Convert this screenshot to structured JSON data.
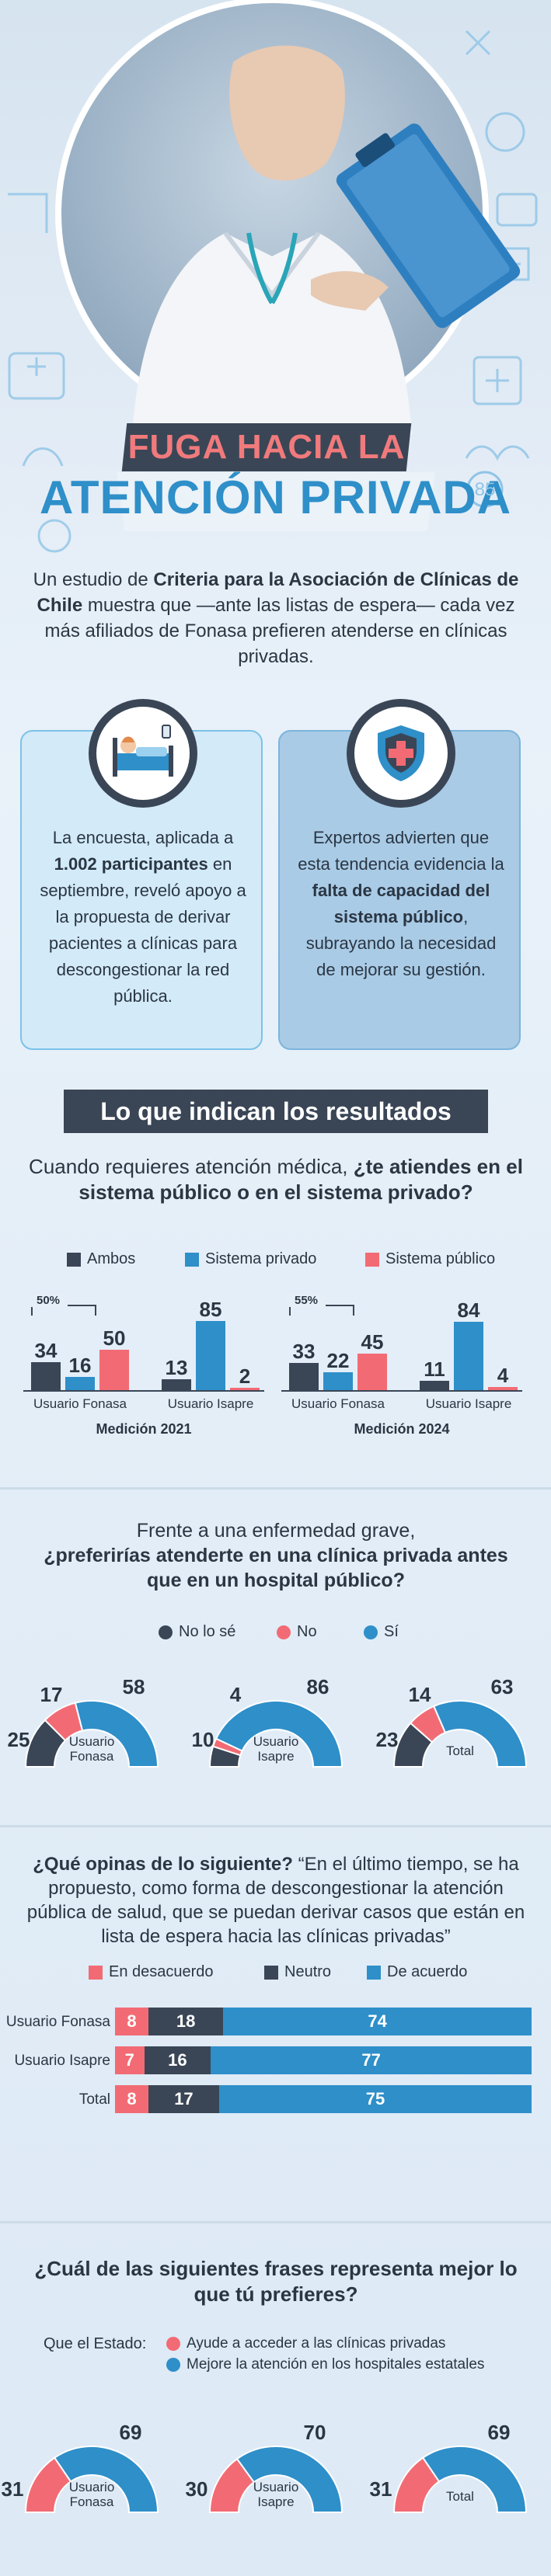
{
  "hero": {
    "title_line1": "FUGA HACIA LA",
    "title_line2": "ATENCIÓN PRIVADA",
    "badge": "85",
    "intro_1": "Un estudio de ",
    "intro_bold": "Criteria para la Asociación de Clínicas de Chile",
    "intro_2": " muestra que —ante las listas de espera— cada vez más afiliados de Fonasa prefieren atenderse en clínicas privadas."
  },
  "card_left": {
    "icon": "patient-bed-icon",
    "t1": "La encuesta, aplicada a ",
    "bold": "1.002 participantes",
    "t2": " en septiembre, reveló apoyo a la propuesta de derivar pacientes a clínicas para descongestionar la red pública."
  },
  "card_right": {
    "icon": "shield-cross-icon",
    "t1": "Expertos advierten que esta tendencia evidencia la ",
    "bold": "falta de capacidad del sistema público",
    "t2": ", subrayando la necesidad de mejorar su gestión."
  },
  "section_title": "Lo que indican los resultados",
  "q1": {
    "text": "Cuando requieres atención médica, ",
    "bold": "¿te atiendes en el sistema público o en el sistema privado?"
  },
  "colors": {
    "ambos": "#3a4656",
    "privado": "#2e8fc9",
    "publico": "#f26b74",
    "neutral": "#3a4656"
  },
  "chart_data": [
    {
      "type": "bar",
      "legend": [
        "Ambos",
        "Sistema privado",
        "Sistema público"
      ],
      "groups": [
        {
          "name": "Medición 2021",
          "categories": [
            "Usuario Fonasa",
            "Usuario Isapre"
          ],
          "series": [
            {
              "name": "Ambos",
              "values": [
                34,
                13
              ]
            },
            {
              "name": "Sistema privado",
              "values": [
                16,
                85
              ]
            },
            {
              "name": "Sistema público",
              "values": [
                50,
                2
              ]
            }
          ],
          "annotation": "50%"
        },
        {
          "name": "Medición 2024",
          "categories": [
            "Usuario Fonasa",
            "Usuario Isapre"
          ],
          "series": [
            {
              "name": "Ambos",
              "values": [
                33,
                11
              ]
            },
            {
              "name": "Sistema privado",
              "values": [
                22,
                84
              ]
            },
            {
              "name": "Sistema público",
              "values": [
                45,
                4
              ]
            }
          ],
          "annotation": "55%"
        }
      ]
    },
    {
      "type": "pie",
      "legend": [
        "No lo sé",
        "No",
        "Sí"
      ],
      "charts": [
        {
          "name": "Usuario Fonasa",
          "values": [
            25,
            17,
            58
          ]
        },
        {
          "name": "Usuario Isapre",
          "values": [
            10,
            4,
            86
          ]
        },
        {
          "name": "Total",
          "values": [
            23,
            14,
            63
          ]
        }
      ]
    },
    {
      "type": "bar",
      "legend": [
        "En desacuerdo",
        "Neutro",
        "De acuerdo"
      ],
      "rows": [
        {
          "name": "Usuario Fonasa",
          "values": [
            8,
            18,
            74
          ]
        },
        {
          "name": "Usuario Isapre",
          "values": [
            7,
            16,
            77
          ]
        },
        {
          "name": "Total",
          "values": [
            8,
            17,
            75
          ]
        }
      ]
    },
    {
      "type": "pie",
      "legend": [
        "Ayude a acceder a las clínicas privadas",
        "Mejore la atención en los hospitales estatales"
      ],
      "charts": [
        {
          "name": "Usuario Fonasa",
          "values": [
            31,
            69
          ]
        },
        {
          "name": "Usuario Isapre",
          "values": [
            30,
            70
          ]
        },
        {
          "name": "Total",
          "values": [
            31,
            69
          ]
        }
      ]
    }
  ],
  "q2": {
    "t1": "Frente a una enfermedad grave,",
    "bold": "¿preferirías atenderte en una clínica privada antes que en un hospital público?"
  },
  "q3": {
    "bold": "¿Qué opinas de lo siguiente?",
    "t": " “En el último tiempo, se ha propuesto, como forma de descongestionar la atención pública de salud, que se puedan derivar casos que están en lista de espera hacia las clínicas privadas”"
  },
  "q4": {
    "bold": "¿Cuál de las siguientes frases representa mejor lo que tú prefieres?",
    "prefix": "Que el Estado:"
  },
  "donut_labels": [
    "Usuario",
    "Fonasa",
    "Usuario",
    "Isapre",
    "Total"
  ]
}
